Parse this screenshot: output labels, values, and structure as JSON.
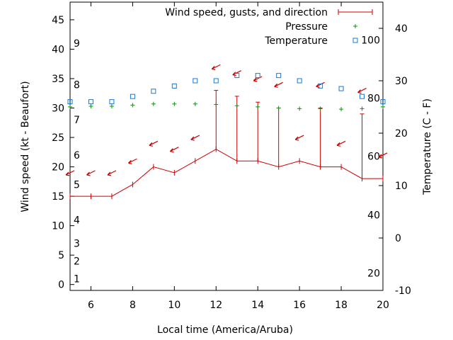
{
  "chart_data": {
    "type": "line",
    "xlabel": "Local time (America/Aruba)",
    "ylabel_left": "Wind speed (kt - Beaufort)",
    "ylabel_right": "Temperature (C - F)",
    "xlim": [
      5,
      20
    ],
    "ylim_left": [
      -1,
      48
    ],
    "ylim_right": [
      -10,
      45
    ],
    "x_ticks": [
      6,
      8,
      10,
      12,
      14,
      16,
      18,
      20
    ],
    "y_left_ticks": [
      0,
      5,
      10,
      15,
      20,
      25,
      30,
      35,
      40,
      45
    ],
    "y_right_ticks": [
      -10,
      0,
      10,
      20,
      30,
      40
    ],
    "beaufort_labels": [
      {
        "label": "1",
        "wind": 1
      },
      {
        "label": "2",
        "wind": 4
      },
      {
        "label": "3",
        "wind": 7
      },
      {
        "label": "4",
        "wind": 11
      },
      {
        "label": "5",
        "wind": 17
      },
      {
        "label": "6",
        "wind": 22
      },
      {
        "label": "7",
        "wind": 28
      },
      {
        "label": "8",
        "wind": 34
      },
      {
        "label": "9",
        "wind": 41
      }
    ],
    "fahrenheit_labels": [
      {
        "label": "20",
        "temp_c": -6.7
      },
      {
        "label": "40",
        "temp_c": 4.4
      },
      {
        "label": "60",
        "temp_c": 15.6
      },
      {
        "label": "80",
        "temp_c": 26.7
      },
      {
        "label": "100",
        "temp_c": 37.8
      }
    ],
    "legend": [
      {
        "name": "Wind speed, gusts, and direction",
        "color": "#cc0000"
      },
      {
        "name": "Pressure",
        "color": "#109010"
      },
      {
        "name": "Temperature",
        "color": "#1a78d0"
      }
    ],
    "legend_position": "top-right",
    "series": [
      {
        "name": "Wind speed, gusts, and direction",
        "x": [
          5,
          6,
          7,
          8,
          9,
          10,
          11,
          12,
          13,
          14,
          15,
          16,
          17,
          18,
          19,
          20
        ],
        "wind": [
          15,
          15,
          15,
          17,
          20,
          19,
          21,
          23,
          21,
          21,
          20,
          21,
          20,
          20,
          18,
          18
        ],
        "gust": [
          null,
          null,
          null,
          null,
          null,
          null,
          null,
          33,
          32,
          31,
          30,
          null,
          30,
          null,
          29,
          null
        ],
        "arrow_y": [
          19,
          19,
          19,
          21,
          24,
          23,
          25,
          37,
          36,
          35,
          34,
          25,
          34,
          24,
          33,
          22
        ]
      },
      {
        "name": "Pressure",
        "x": [
          5,
          6,
          7,
          8,
          9,
          10,
          11,
          12,
          13,
          14,
          15,
          16,
          17,
          18,
          19,
          20
        ],
        "values": [
          30.2,
          30.3,
          30.3,
          30.5,
          30.7,
          30.7,
          30.7,
          30.6,
          30.4,
          30.2,
          30.0,
          29.9,
          29.9,
          29.8,
          29.9,
          30.2
        ]
      },
      {
        "name": "Temperature",
        "x": [
          5,
          6,
          7,
          8,
          9,
          10,
          11,
          12,
          13,
          14,
          15,
          16,
          17,
          18,
          19,
          20
        ],
        "values": [
          26,
          26,
          26,
          27,
          28,
          29,
          30,
          30,
          31,
          31,
          31,
          30,
          29,
          28.5,
          27,
          26
        ]
      }
    ]
  }
}
